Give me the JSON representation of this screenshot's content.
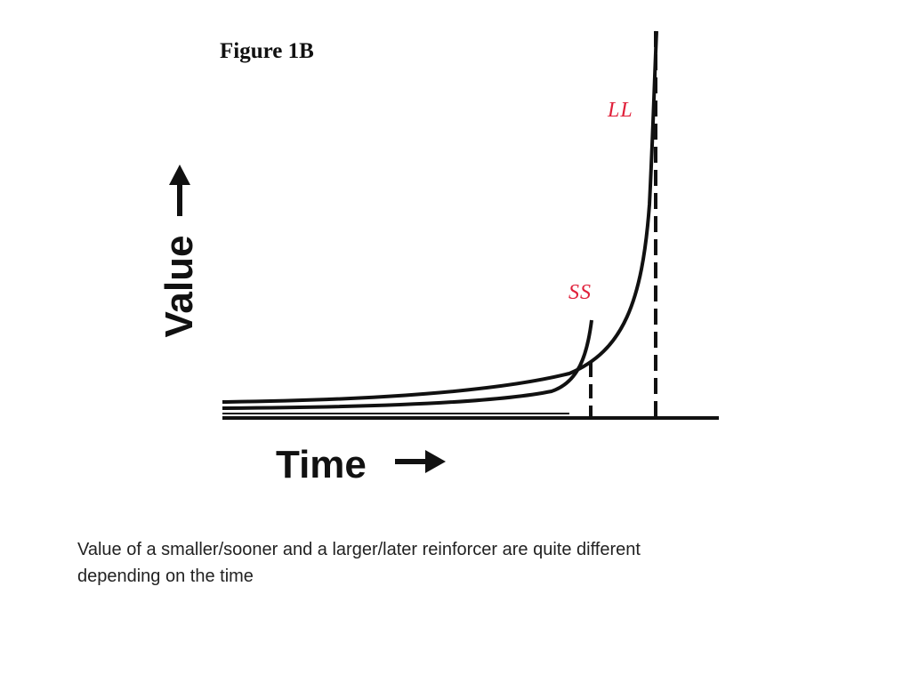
{
  "figure": {
    "title": "Figure 1B",
    "y_axis_label": "Value",
    "x_axis_label": "Time",
    "labels": {
      "ss": "SS",
      "ll": "LL"
    }
  },
  "caption": "Value of a smaller/sooner and a larger/later reinforcer are quite different depending on the time",
  "colors": {
    "label_red": "#e0203a",
    "ink": "#111111"
  }
}
